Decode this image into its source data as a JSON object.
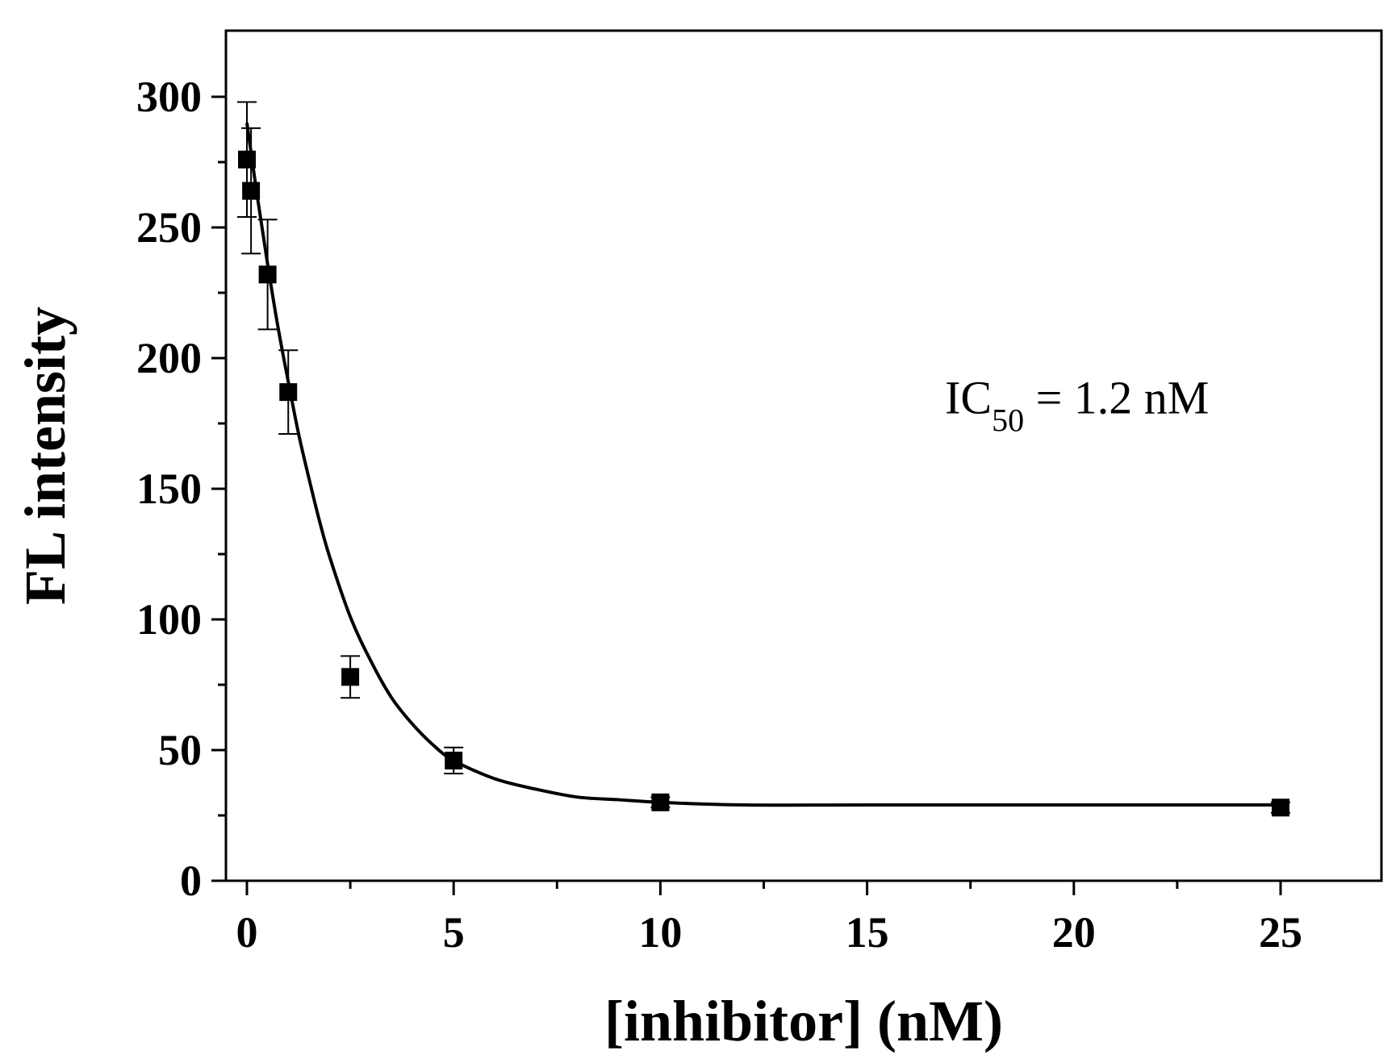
{
  "chart_data": {
    "type": "scatter",
    "title": "",
    "xlabel": "[inhibitor] (nM)",
    "ylabel": "FL intensity",
    "xlim": [
      -0.5,
      28
    ],
    "ylim": [
      0,
      323
    ],
    "x_ticks": [
      0,
      5,
      10,
      15,
      20,
      25
    ],
    "x_tick_labels": [
      "0",
      "5",
      "10",
      "15",
      "20",
      "25"
    ],
    "y_ticks": [
      0,
      50,
      100,
      150,
      200,
      250,
      300
    ],
    "y_tick_labels": [
      "0",
      "50",
      "100",
      "150",
      "200",
      "250",
      "300"
    ],
    "grid": false,
    "legend": "none",
    "series": [
      {
        "marker": "square",
        "color": "#000000",
        "x": [
          0,
          0.1,
          0.5,
          1,
          2.5,
          5,
          10,
          25
        ],
        "y": [
          276,
          264,
          232,
          187,
          78,
          46,
          30,
          28
        ],
        "yerr": [
          22,
          24,
          21,
          16,
          8,
          5,
          2,
          2
        ]
      }
    ],
    "fit_curve": {
      "style": "line",
      "color": "#000000",
      "x": [
        0,
        0.25,
        0.5,
        0.75,
        1,
        1.25,
        1.5,
        1.75,
        2,
        2.5,
        3,
        3.5,
        4,
        4.5,
        5,
        6,
        7,
        8,
        9,
        10,
        12,
        15,
        20,
        25
      ],
      "y": [
        290,
        262,
        236,
        212,
        191,
        171,
        154,
        138,
        124,
        101,
        84,
        70,
        60,
        52,
        46,
        39,
        35,
        32,
        31,
        30,
        29,
        29,
        29,
        29
      ]
    },
    "annotation": {
      "text": "IC",
      "subscript": "50",
      "suffix": " = 1.2 nM",
      "x": 17,
      "y": 185
    }
  }
}
